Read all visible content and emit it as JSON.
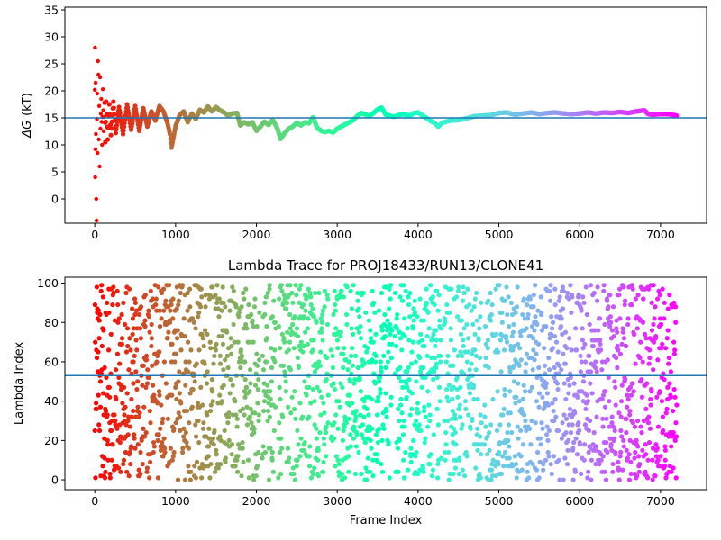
{
  "chart_data": [
    {
      "type": "scatter",
      "title": "",
      "xlabel": "",
      "ylabel": "ΔG (kT)",
      "ylabel_main": "ΔG",
      "ylabel_unit": "(kT)",
      "xlim": [
        -370,
        7570
      ],
      "ylim": [
        -4.5,
        35.5
      ],
      "xticks": [
        0,
        1000,
        2000,
        3000,
        4000,
        5000,
        6000,
        7000
      ],
      "yticks": [
        0,
        5,
        10,
        15,
        20,
        25,
        30,
        35
      ],
      "reference_line": 15,
      "reference_color": "#1f77b4",
      "colormap": "rainbow",
      "color_by": "frame index (early frames red, late frames violet)",
      "n_frames": 7200,
      "trace": [
        [
          0,
          20.2
        ],
        [
          3,
          28.0
        ],
        [
          5,
          4.0
        ],
        [
          8,
          9.2
        ],
        [
          10,
          21.5
        ],
        [
          14,
          12.0
        ],
        [
          18,
          0.0
        ],
        [
          22,
          -4.0
        ],
        [
          26,
          14.8
        ],
        [
          30,
          19.5
        ],
        [
          35,
          8.5
        ],
        [
          40,
          25.5
        ],
        [
          45,
          23.0
        ],
        [
          50,
          11.0
        ],
        [
          55,
          17.2
        ],
        [
          60,
          6.0
        ],
        [
          65,
          22.5
        ],
        [
          70,
          13.0
        ],
        [
          80,
          18.5
        ],
        [
          90,
          10.0
        ],
        [
          100,
          20.3
        ],
        [
          110,
          12.5
        ],
        [
          120,
          17.8
        ],
        [
          130,
          10.5
        ],
        [
          140,
          18.0
        ],
        [
          160,
          11.0
        ],
        [
          180,
          17.5
        ],
        [
          200,
          11.8
        ],
        [
          230,
          18.0
        ],
        [
          260,
          12.2
        ],
        [
          300,
          17.0
        ],
        [
          350,
          12.0
        ],
        [
          400,
          17.5
        ],
        [
          450,
          12.8
        ],
        [
          500,
          17.2
        ],
        [
          550,
          12.6
        ],
        [
          600,
          16.8
        ],
        [
          650,
          13.4
        ],
        [
          700,
          16.2
        ],
        [
          750,
          14.5
        ],
        [
          800,
          17.2
        ],
        [
          850,
          16.2
        ],
        [
          900,
          14.0
        ],
        [
          930,
          12.0
        ],
        [
          950,
          9.5
        ],
        [
          970,
          11.0
        ],
        [
          1000,
          13.5
        ],
        [
          1050,
          15.5
        ],
        [
          1100,
          16.2
        ],
        [
          1150,
          14.2
        ],
        [
          1200,
          15.8
        ],
        [
          1250,
          14.8
        ],
        [
          1300,
          16.5
        ],
        [
          1350,
          16.0
        ],
        [
          1400,
          17.1
        ],
        [
          1450,
          16.2
        ],
        [
          1500,
          17.0
        ],
        [
          1550,
          16.4
        ],
        [
          1600,
          16.0
        ],
        [
          1650,
          15.4
        ],
        [
          1700,
          15.8
        ],
        [
          1760,
          15.9
        ],
        [
          1800,
          13.6
        ],
        [
          1850,
          14.2
        ],
        [
          1900,
          13.8
        ],
        [
          1950,
          14.2
        ],
        [
          2000,
          12.6
        ],
        [
          2050,
          13.4
        ],
        [
          2100,
          14.3
        ],
        [
          2150,
          13.7
        ],
        [
          2200,
          14.7
        ],
        [
          2260,
          13.0
        ],
        [
          2300,
          11.1
        ],
        [
          2350,
          12.2
        ],
        [
          2400,
          13.0
        ],
        [
          2450,
          13.4
        ],
        [
          2500,
          14.1
        ],
        [
          2550,
          13.6
        ],
        [
          2600,
          14.2
        ],
        [
          2650,
          14.0
        ],
        [
          2700,
          15.1
        ],
        [
          2750,
          13.2
        ],
        [
          2800,
          12.6
        ],
        [
          2850,
          12.4
        ],
        [
          2900,
          12.6
        ],
        [
          2950,
          12.3
        ],
        [
          3000,
          13.0
        ],
        [
          3100,
          13.8
        ],
        [
          3200,
          14.6
        ],
        [
          3250,
          15.4
        ],
        [
          3300,
          15.9
        ],
        [
          3350,
          15.6
        ],
        [
          3400,
          15.4
        ],
        [
          3450,
          15.9
        ],
        [
          3500,
          16.6
        ],
        [
          3550,
          16.9
        ],
        [
          3600,
          15.6
        ],
        [
          3700,
          15.2
        ],
        [
          3800,
          15.7
        ],
        [
          3900,
          15.4
        ],
        [
          3950,
          15.9
        ],
        [
          4000,
          16.0
        ],
        [
          4100,
          15.0
        ],
        [
          4150,
          14.5
        ],
        [
          4200,
          14.1
        ],
        [
          4250,
          13.4
        ],
        [
          4300,
          14.1
        ],
        [
          4400,
          14.5
        ],
        [
          4500,
          14.6
        ],
        [
          4600,
          14.9
        ],
        [
          4700,
          15.3
        ],
        [
          4800,
          15.4
        ],
        [
          4900,
          15.5
        ],
        [
          5000,
          15.9
        ],
        [
          5100,
          16.0
        ],
        [
          5200,
          15.6
        ],
        [
          5300,
          15.8
        ],
        [
          5400,
          16.0
        ],
        [
          5500,
          15.7
        ],
        [
          5600,
          15.9
        ],
        [
          5700,
          16.0
        ],
        [
          5800,
          15.8
        ],
        [
          5900,
          15.7
        ],
        [
          6000,
          15.8
        ],
        [
          6100,
          16.0
        ],
        [
          6200,
          15.8
        ],
        [
          6300,
          16.0
        ],
        [
          6400,
          15.9
        ],
        [
          6500,
          16.1
        ],
        [
          6600,
          15.9
        ],
        [
          6700,
          16.2
        ],
        [
          6800,
          16.4
        ],
        [
          6850,
          15.7
        ],
        [
          6900,
          15.6
        ],
        [
          7000,
          15.7
        ],
        [
          7100,
          15.7
        ],
        [
          7200,
          15.4
        ]
      ]
    },
    {
      "type": "scatter",
      "title": "Lambda Trace for PROJ18433/RUN13/CLONE41",
      "xlabel": "Frame Index",
      "ylabel": "Lambda Index",
      "xlim": [
        -370,
        7570
      ],
      "ylim": [
        -5,
        103
      ],
      "xticks": [
        0,
        1000,
        2000,
        3000,
        4000,
        5000,
        6000,
        7000
      ],
      "yticks": [
        0,
        20,
        40,
        60,
        80,
        100
      ],
      "reference_line": 53,
      "reference_color": "#1f77b4",
      "colormap": "rainbow",
      "color_by": "frame index (early frames red, late frames violet)",
      "n_frames": 7200,
      "lambda_range": [
        0,
        99
      ],
      "point_sample_step": 3,
      "sample_points_note": "points scatter across the full lambda range 0-99 at every frame; vertical gaps near frames 2050, 2250, 2900, 3700, 4300, 4800"
    }
  ]
}
